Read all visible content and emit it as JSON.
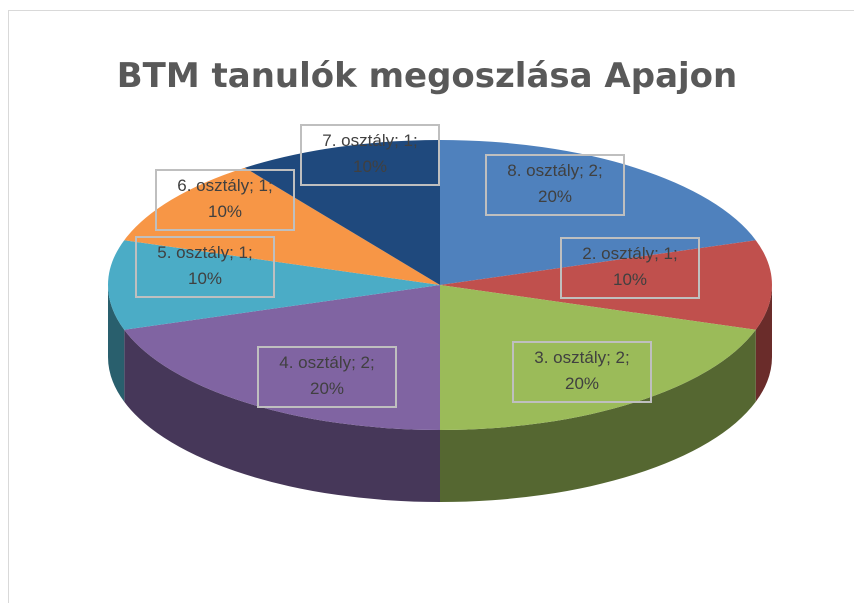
{
  "chart_data": {
    "type": "pie3d",
    "title": "BTM tanulók megoszlása Apajon",
    "categories": [
      "8. osztály",
      "2. osztály",
      "3. osztály",
      "4. osztály",
      "5. osztály",
      "6. osztály",
      "7. osztály"
    ],
    "values": [
      2,
      1,
      2,
      2,
      1,
      1,
      1
    ],
    "value_labels": [
      "8. osztály; 2; 20%",
      "2. osztály; 1; 10%",
      "3. osztály; 2; 20%",
      "4. osztály; 2; 20%",
      "5. osztály; 1; 10%",
      "6. osztály; 1; 10%",
      "7. osztály; 1; 10%"
    ],
    "colors": [
      "#4f81bd",
      "#c0504d",
      "#9bbb59",
      "#8064a2",
      "#4bacc6",
      "#f79646",
      "#1f497d"
    ]
  }
}
